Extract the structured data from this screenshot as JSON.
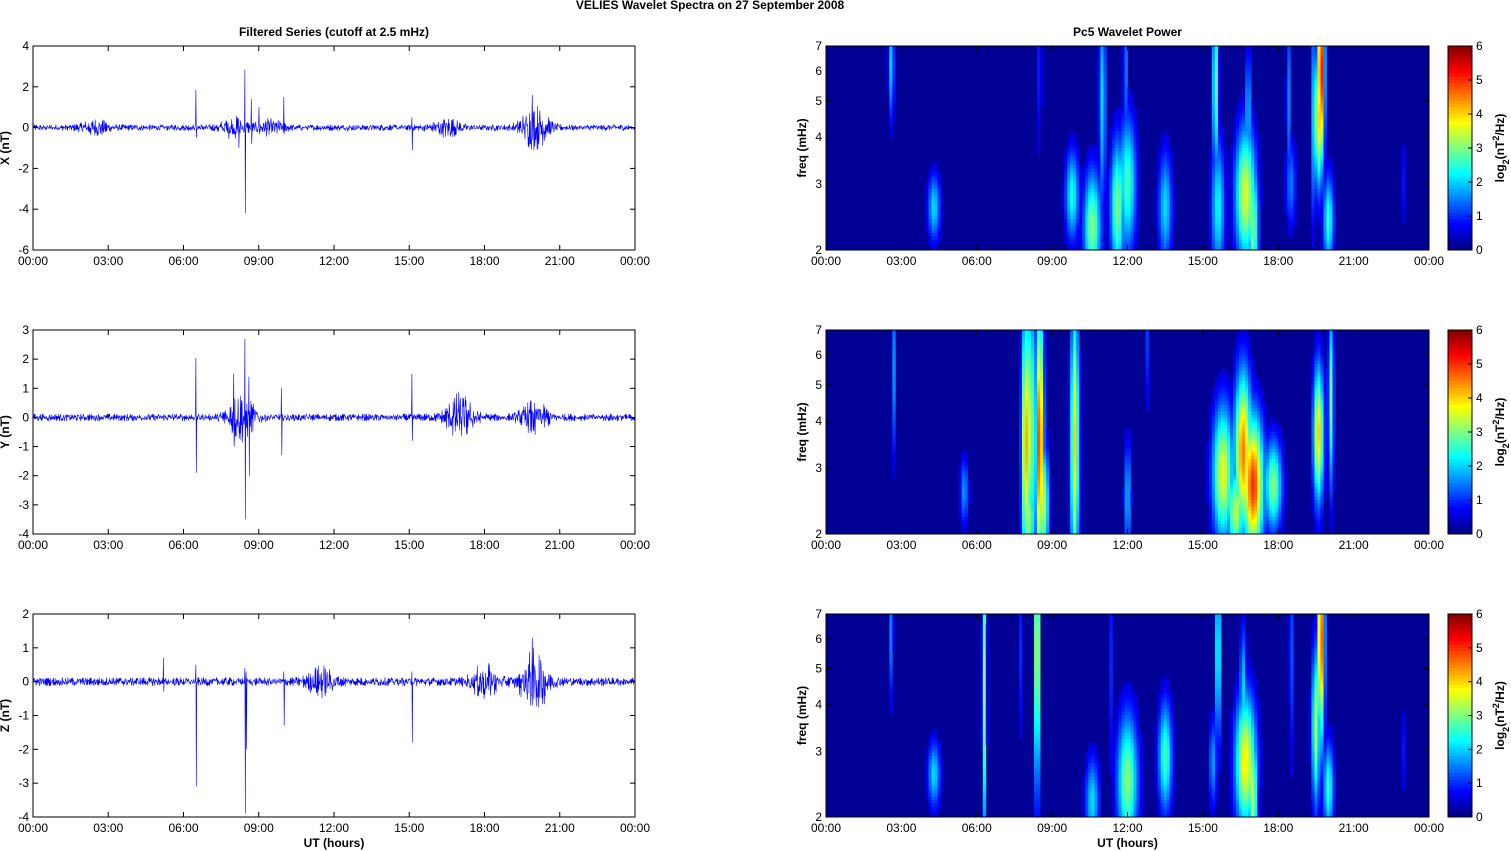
{
  "figure_title": "VELIES Wavelet Spectra on 27 September 2008",
  "colors": {
    "trace": "#0000ff",
    "axis": "#000000",
    "background": "#00008f"
  },
  "chart_data": [
    {
      "type": "line",
      "title": "Filtered Series (cutoff at 2.5 mHz)",
      "xlabel": "",
      "ylabel": "X (nT)",
      "xlim": [
        0,
        24
      ],
      "ylim": [
        -6,
        4
      ],
      "xticks": [
        "00:00",
        "03:00",
        "06:00",
        "09:00",
        "12:00",
        "15:00",
        "18:00",
        "21:00",
        "00:00"
      ],
      "yticks": [
        "4",
        "2",
        "0",
        "-2",
        "-4",
        "-6"
      ],
      "series": [
        {
          "values_note_free": true,
          "baseline_amplitude": 0.12,
          "spikes": [
            [
              6.5,
              1.85,
              -0.5
            ],
            [
              8.45,
              2.85,
              -4.2
            ],
            [
              8.2,
              0.4,
              -1.0
            ],
            [
              8.7,
              1.4,
              -0.8
            ],
            [
              9.0,
              1.0,
              -0.3
            ],
            [
              10.0,
              1.5,
              -0.3
            ],
            [
              15.1,
              0.5,
              -1.1
            ],
            [
              19.9,
              1.6,
              -0.6
            ]
          ],
          "bursts": [
            [
              2.5,
              0.25
            ],
            [
              8.0,
              0.35
            ],
            [
              9.5,
              0.25
            ],
            [
              16.5,
              0.3
            ],
            [
              20.0,
              0.8
            ]
          ]
        }
      ]
    },
    {
      "type": "line",
      "title": "",
      "xlabel": "",
      "ylabel": "Y (nT)",
      "xlim": [
        0,
        24
      ],
      "ylim": [
        -4,
        3
      ],
      "xticks": [
        "00:00",
        "03:00",
        "06:00",
        "09:00",
        "12:00",
        "15:00",
        "18:00",
        "21:00",
        "00:00"
      ],
      "yticks": [
        "3",
        "2",
        "1",
        "0",
        "-1",
        "-2",
        "-3",
        "-4"
      ],
      "series": [
        {
          "baseline_amplitude": 0.1,
          "spikes": [
            [
              6.5,
              2.05,
              -1.9
            ],
            [
              8.0,
              1.5,
              -1.0
            ],
            [
              8.45,
              2.7,
              -3.5
            ],
            [
              8.6,
              1.4,
              -2.0
            ],
            [
              9.9,
              1.0,
              -1.3
            ],
            [
              15.1,
              1.5,
              -0.8
            ],
            [
              20.0,
              0.5,
              -0.6
            ]
          ],
          "bursts": [
            [
              8.3,
              0.6
            ],
            [
              17.0,
              0.6
            ],
            [
              20.0,
              0.4
            ]
          ]
        }
      ]
    },
    {
      "type": "line",
      "title": "",
      "xlabel": "UT (hours)",
      "ylabel": "Z (nT)",
      "xlim": [
        0,
        24
      ],
      "ylim": [
        -4,
        2
      ],
      "xticks": [
        "00:00",
        "03:00",
        "06:00",
        "09:00",
        "12:00",
        "15:00",
        "18:00",
        "21:00",
        "00:00"
      ],
      "yticks": [
        "2",
        "1",
        "0",
        "-1",
        "-2",
        "-3",
        "-4"
      ],
      "series": [
        {
          "baseline_amplitude": 0.1,
          "spikes": [
            [
              6.5,
              0.5,
              -3.1
            ],
            [
              5.2,
              0.7,
              -0.3
            ],
            [
              8.45,
              0.4,
              -3.9
            ],
            [
              8.5,
              0.3,
              -2.0
            ],
            [
              10.0,
              0.3,
              -1.3
            ],
            [
              15.1,
              0.3,
              -1.8
            ],
            [
              19.9,
              1.3,
              -0.7
            ]
          ],
          "bursts": [
            [
              11.5,
              0.3
            ],
            [
              18.0,
              0.35
            ],
            [
              20.0,
              0.7
            ]
          ]
        }
      ]
    },
    {
      "type": "heatmap",
      "title": "Pc5 Wavelet Power",
      "xlabel": "",
      "ylabel": "freq (mHz)",
      "colorbar_label": "log2(nT^2/Hz)",
      "colorbar_range": [
        0,
        6
      ],
      "colorbar_ticks": [
        "6",
        "5",
        "4",
        "3",
        "2",
        "1",
        "0"
      ],
      "xlim": [
        0,
        24
      ],
      "ylim": [
        2,
        7
      ],
      "yscale": "log",
      "xticks": [
        "00:00",
        "03:00",
        "06:00",
        "09:00",
        "12:00",
        "15:00",
        "18:00",
        "21:00",
        "00:00"
      ],
      "yticks": [
        "7",
        "6",
        "5",
        "4",
        "3",
        "2"
      ],
      "blobs": [
        [
          2.6,
          6.3,
          0.08,
          0.25,
          2.0
        ],
        [
          4.3,
          2.6,
          0.18,
          0.15,
          2.0
        ],
        [
          8.5,
          6.0,
          0.06,
          0.4,
          1.0
        ],
        [
          9.8,
          2.8,
          0.2,
          0.2,
          2.3
        ],
        [
          10.6,
          2.3,
          0.25,
          0.25,
          3.0
        ],
        [
          11.0,
          5.0,
          0.1,
          0.5,
          2.0
        ],
        [
          11.6,
          2.6,
          0.2,
          0.3,
          3.0
        ],
        [
          12.0,
          3.0,
          0.25,
          0.3,
          2.6
        ],
        [
          11.9,
          6.0,
          0.05,
          0.4,
          1.8
        ],
        [
          13.5,
          2.6,
          0.2,
          0.25,
          2.0
        ],
        [
          15.5,
          5.5,
          0.08,
          0.4,
          3.0
        ],
        [
          15.6,
          2.6,
          0.2,
          0.3,
          2.2
        ],
        [
          16.7,
          2.8,
          0.3,
          0.3,
          3.5
        ],
        [
          17.0,
          2.3,
          0.15,
          0.3,
          3.0
        ],
        [
          16.8,
          4.5,
          0.08,
          0.3,
          2.0
        ],
        [
          18.4,
          5.0,
          0.06,
          0.4,
          1.5
        ],
        [
          19.4,
          4.5,
          0.05,
          0.45,
          2.0
        ],
        [
          19.7,
          6.0,
          0.1,
          0.4,
          5.5
        ],
        [
          19.6,
          4.5,
          0.12,
          0.3,
          4.0
        ],
        [
          20.0,
          2.4,
          0.15,
          0.2,
          2.5
        ],
        [
          18.5,
          3.0,
          0.15,
          0.2,
          1.4
        ],
        [
          23.0,
          3.0,
          0.05,
          0.2,
          0.8
        ]
      ]
    },
    {
      "type": "heatmap",
      "title": "",
      "xlabel": "",
      "ylabel": "freq (mHz)",
      "colorbar_label": "log2(nT^2/Hz)",
      "colorbar_range": [
        0,
        6
      ],
      "colorbar_ticks": [
        "6",
        "5",
        "4",
        "3",
        "2",
        "1",
        "0"
      ],
      "xlim": [
        0,
        24
      ],
      "ylim": [
        2,
        7
      ],
      "yscale": "log",
      "xticks": [
        "00:00",
        "03:00",
        "06:00",
        "09:00",
        "12:00",
        "15:00",
        "18:00",
        "21:00",
        "00:00"
      ],
      "yticks": [
        "7",
        "6",
        "5",
        "4",
        "3",
        "2"
      ],
      "blobs": [
        [
          2.7,
          5.5,
          0.06,
          0.4,
          1.5
        ],
        [
          5.5,
          2.6,
          0.12,
          0.15,
          1.6
        ],
        [
          7.95,
          3.5,
          0.12,
          0.6,
          4.3
        ],
        [
          8.15,
          3.8,
          0.08,
          0.6,
          4.0
        ],
        [
          8.5,
          3.5,
          0.12,
          0.6,
          5.0
        ],
        [
          8.7,
          2.4,
          0.12,
          0.25,
          3.2
        ],
        [
          9.9,
          3.5,
          0.12,
          0.6,
          4.0
        ],
        [
          8.1,
          2.2,
          0.15,
          0.2,
          3.0
        ],
        [
          12.0,
          2.5,
          0.1,
          0.25,
          1.8
        ],
        [
          15.8,
          2.9,
          0.3,
          0.3,
          3.6
        ],
        [
          16.6,
          3.3,
          0.25,
          0.35,
          4.5
        ],
        [
          17.0,
          2.7,
          0.3,
          0.3,
          5.0
        ],
        [
          16.3,
          2.3,
          0.25,
          0.2,
          3.3
        ],
        [
          17.8,
          2.7,
          0.25,
          0.2,
          3.0
        ],
        [
          19.6,
          3.7,
          0.15,
          0.3,
          4.0
        ],
        [
          20.1,
          4.6,
          0.08,
          0.4,
          2.8
        ],
        [
          12.8,
          6.5,
          0.03,
          0.3,
          1.2
        ]
      ]
    },
    {
      "type": "heatmap",
      "title": "",
      "xlabel": "UT (hours)",
      "ylabel": "freq (mHz)",
      "colorbar_label": "log2(nT^2/Hz)",
      "colorbar_range": [
        0,
        6
      ],
      "colorbar_ticks": [
        "6",
        "5",
        "4",
        "3",
        "2",
        "1",
        "0"
      ],
      "xlim": [
        0,
        24
      ],
      "ylim": [
        2,
        7
      ],
      "yscale": "log",
      "xticks": [
        "00:00",
        "03:00",
        "06:00",
        "09:00",
        "12:00",
        "15:00",
        "18:00",
        "21:00",
        "00:00"
      ],
      "yticks": [
        "7",
        "6",
        "5",
        "4",
        "3",
        "2"
      ],
      "blobs": [
        [
          2.6,
          6.2,
          0.06,
          0.3,
          1.5
        ],
        [
          4.3,
          2.6,
          0.18,
          0.15,
          2.0
        ],
        [
          6.3,
          4.5,
          0.06,
          0.7,
          3.0
        ],
        [
          8.4,
          5.5,
          0.08,
          0.6,
          3.8
        ],
        [
          10.6,
          2.2,
          0.2,
          0.2,
          2.0
        ],
        [
          12.0,
          2.5,
          0.3,
          0.3,
          3.0
        ],
        [
          11.3,
          5.0,
          0.05,
          0.5,
          1.2
        ],
        [
          13.5,
          2.9,
          0.2,
          0.25,
          2.6
        ],
        [
          15.6,
          5.5,
          0.08,
          0.4,
          2.6
        ],
        [
          16.7,
          2.8,
          0.3,
          0.3,
          3.8
        ],
        [
          17.0,
          2.3,
          0.12,
          0.3,
          3.4
        ],
        [
          16.6,
          4.3,
          0.1,
          0.3,
          2.0
        ],
        [
          18.5,
          5.5,
          0.05,
          0.5,
          1.5
        ],
        [
          19.7,
          6.0,
          0.1,
          0.45,
          5.0
        ],
        [
          19.5,
          3.5,
          0.12,
          0.35,
          3.2
        ],
        [
          20.0,
          2.4,
          0.15,
          0.2,
          2.5
        ],
        [
          15.4,
          2.8,
          0.12,
          0.2,
          1.6
        ],
        [
          7.7,
          5.5,
          0.05,
          0.4,
          1.2
        ],
        [
          23.0,
          3.0,
          0.05,
          0.2,
          0.8
        ]
      ]
    }
  ]
}
